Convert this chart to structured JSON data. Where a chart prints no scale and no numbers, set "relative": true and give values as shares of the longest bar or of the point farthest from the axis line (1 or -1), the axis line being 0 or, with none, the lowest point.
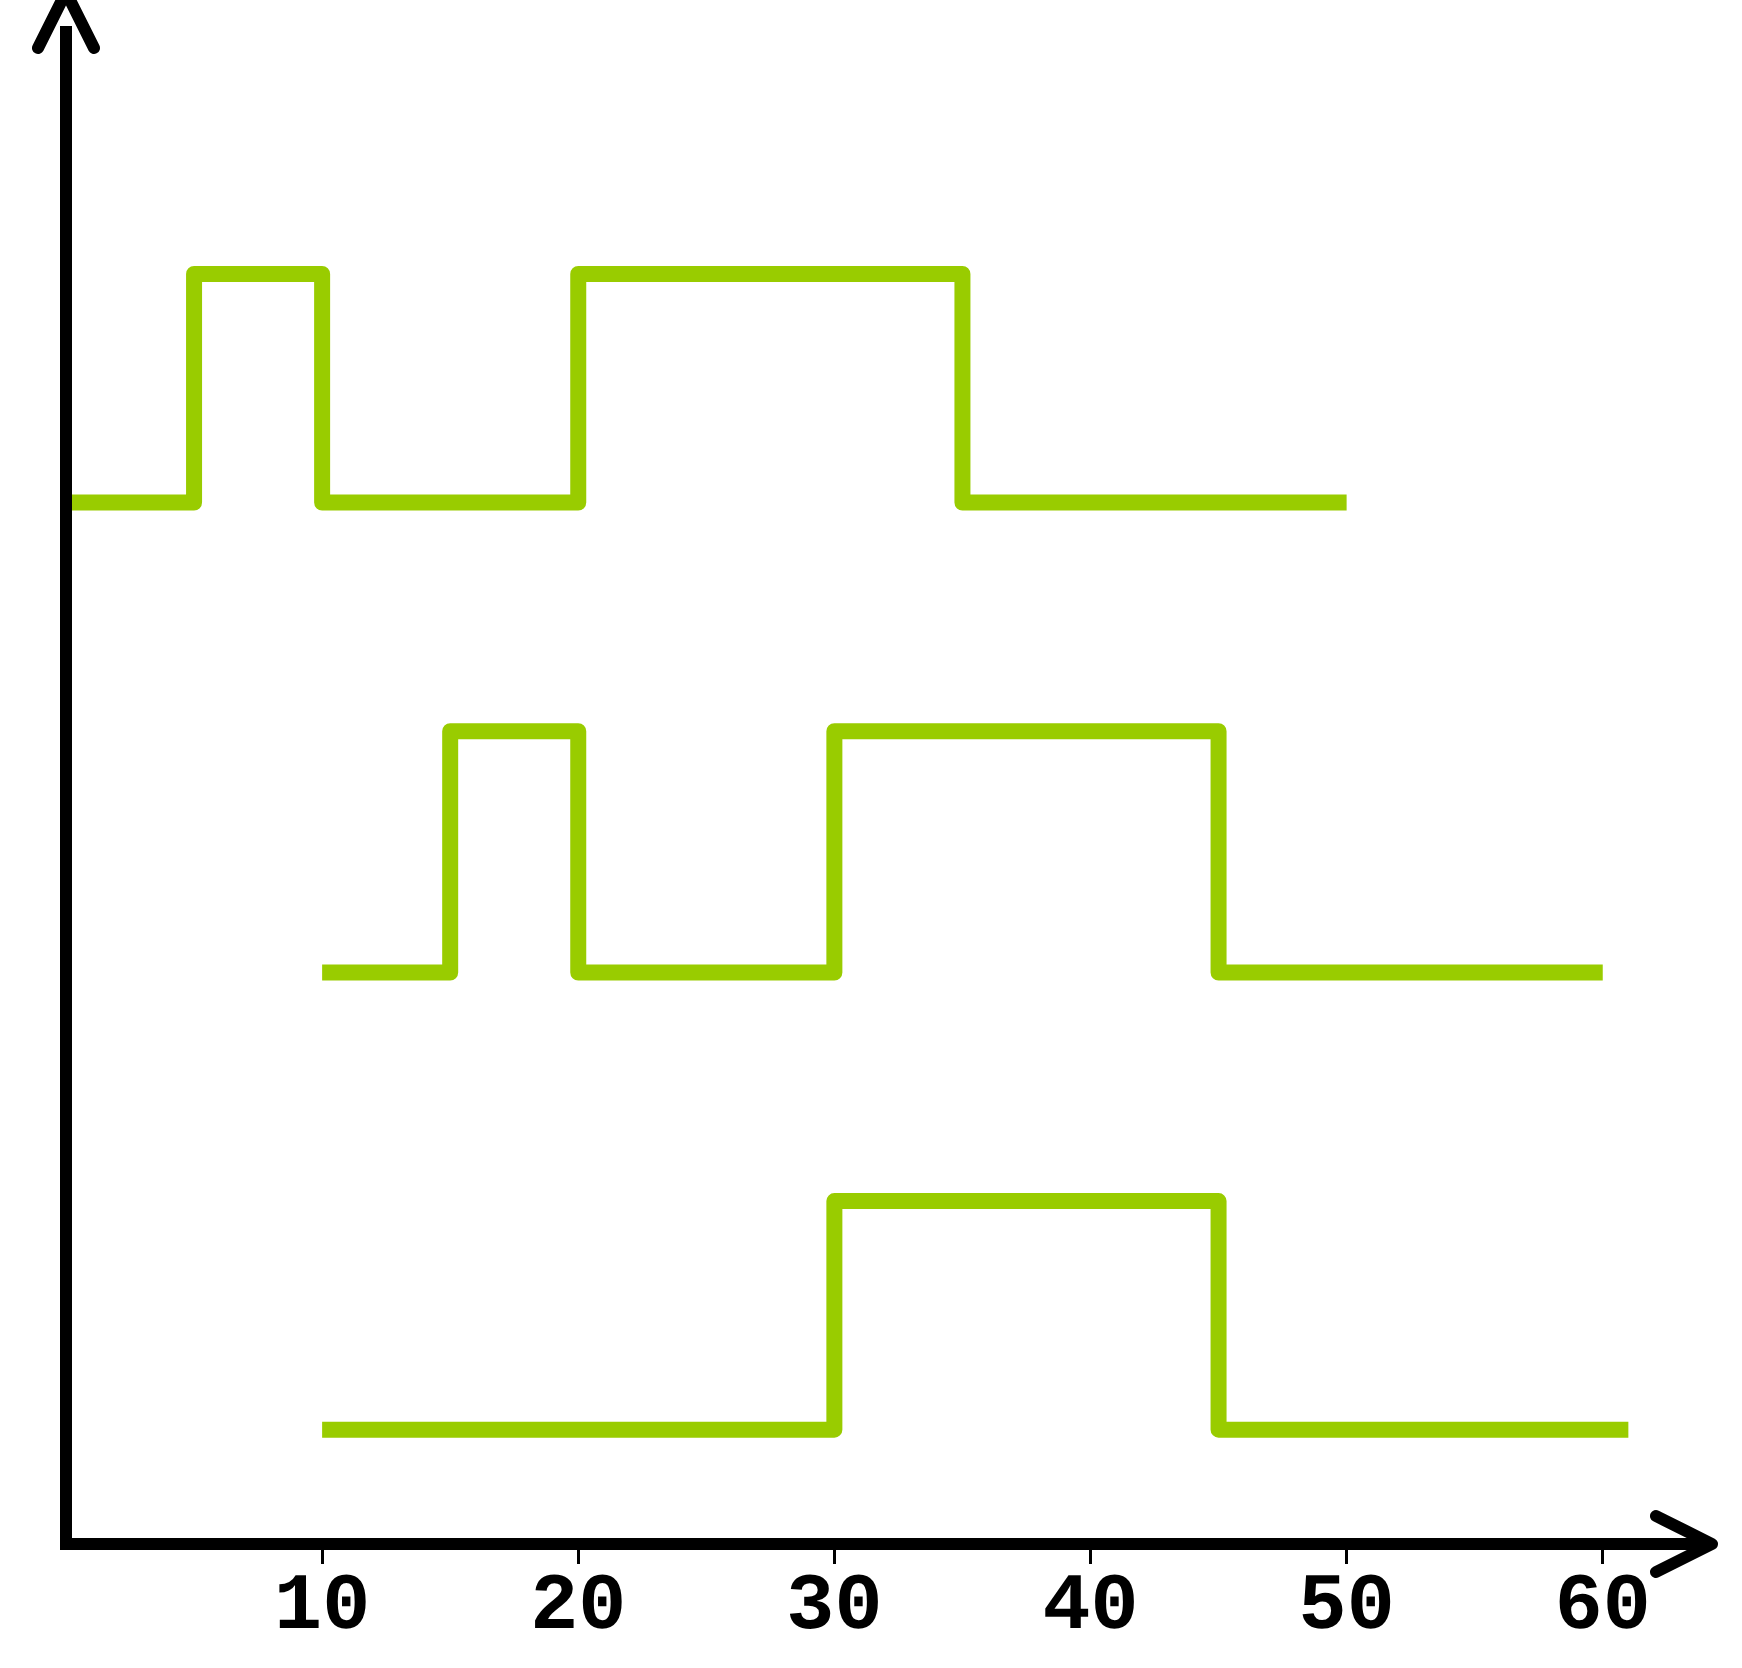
{
  "chart_data": {
    "type": "step",
    "relative": true,
    "xlim": [
      0,
      64.5
    ],
    "xticks": [
      10,
      20,
      30,
      40,
      50,
      60
    ],
    "tick_labels": "x",
    "series": [
      {
        "color": "#99cc00",
        "x": [
          0,
          5,
          10,
          20,
          35,
          50
        ],
        "values": [
          0.82,
          1,
          0.82,
          1,
          0.82,
          0.82
        ]
      },
      {
        "color": "#99cc00",
        "x": [
          10,
          15,
          20,
          30,
          45,
          60
        ],
        "values": [
          0.45,
          0.64,
          0.45,
          0.64,
          0.45,
          0.45
        ]
      },
      {
        "color": "#99cc00",
        "x": [
          10,
          30,
          45,
          61
        ],
        "values": [
          0.09,
          0.27,
          0.09,
          0.09
        ]
      }
    ]
  }
}
